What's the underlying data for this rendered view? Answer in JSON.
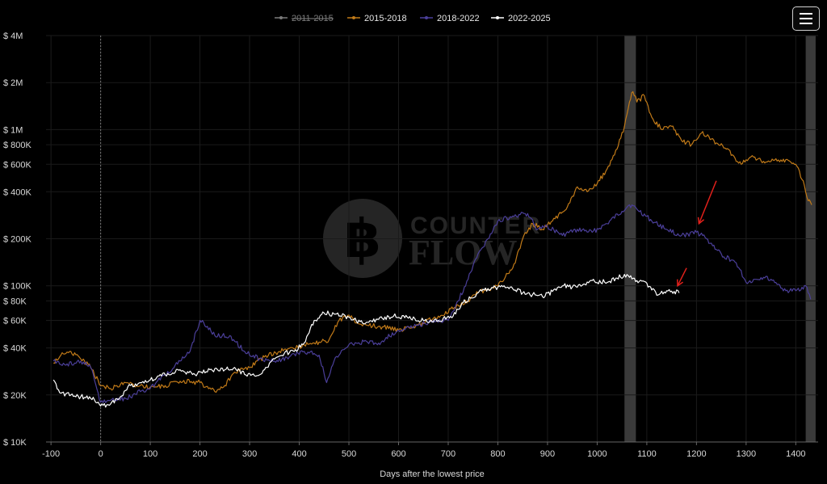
{
  "menu": {
    "icon": "hamburger-menu-icon"
  },
  "watermark": {
    "line1": "COUNTER",
    "line2": "FLOW",
    "logo_icon": "bitcoin-logo-icon"
  },
  "colors": {
    "background": "#000000",
    "grid": "#1b1b1b",
    "axis_text": "#d9d9d9",
    "axis_line": "#666666",
    "halving_band": "#3a3a3a",
    "annotation_arrow": "#e0201b"
  },
  "chart_data": {
    "type": "line",
    "title": "",
    "xlabel": "Days after the lowest price",
    "ylabel": "",
    "y_scale": "log",
    "xlim": [
      -110,
      1445
    ],
    "ylim": [
      10000,
      4000000
    ],
    "x_ticks": [
      -100,
      0,
      100,
      200,
      300,
      400,
      500,
      600,
      700,
      800,
      900,
      1000,
      1100,
      1200,
      1300,
      1400
    ],
    "x_tick_labels": [
      "-100",
      "0",
      "100",
      "200",
      "300",
      "400",
      "500",
      "600",
      "700",
      "800",
      "900",
      "1000",
      "1100",
      "1200",
      "1300",
      "1400"
    ],
    "y_ticks": [
      10000,
      20000,
      40000,
      60000,
      80000,
      100000,
      200000,
      400000,
      600000,
      800000,
      1000000,
      2000000,
      4000000
    ],
    "y_tick_labels": [
      "$ 10K",
      "$ 20K",
      "$ 40K",
      "$ 60K",
      "$ 80K",
      "$ 100K",
      "$ 200K",
      "$ 400K",
      "$ 600K",
      "$ 800K",
      "$ 1M",
      "$ 2M",
      "$ 4M"
    ],
    "grid": true,
    "legend_position": "top-center",
    "reference_line_x": 0,
    "shaded_bands": [
      {
        "x_start": 1055,
        "x_end": 1078
      },
      {
        "x_start": 1420,
        "x_end": 1440
      }
    ],
    "annotations": [
      {
        "type": "arrow",
        "from": [
          1240,
          470000
        ],
        "to": [
          1205,
          250000
        ]
      },
      {
        "type": "arrow",
        "from": [
          1180,
          130000
        ],
        "to": [
          1162,
          100000
        ]
      }
    ],
    "series": [
      {
        "name": "2011-2015",
        "color": "#7a7a7a",
        "hidden": true,
        "points": []
      },
      {
        "name": "2015-2018",
        "color": "#c17a18",
        "hidden": false,
        "points": [
          [
            -95,
            32000
          ],
          [
            -80,
            36000
          ],
          [
            -60,
            38000
          ],
          [
            -40,
            34000
          ],
          [
            -20,
            30000
          ],
          [
            0,
            23000
          ],
          [
            20,
            22000
          ],
          [
            50,
            24000
          ],
          [
            80,
            23000
          ],
          [
            100,
            22500
          ],
          [
            130,
            23000
          ],
          [
            160,
            24500
          ],
          [
            200,
            24000
          ],
          [
            230,
            21000
          ],
          [
            250,
            23000
          ],
          [
            270,
            28000
          ],
          [
            300,
            30000
          ],
          [
            330,
            35000
          ],
          [
            360,
            38000
          ],
          [
            400,
            41000
          ],
          [
            430,
            43000
          ],
          [
            460,
            45000
          ],
          [
            480,
            60000
          ],
          [
            500,
            65000
          ],
          [
            520,
            57000
          ],
          [
            560,
            55000
          ],
          [
            600,
            52000
          ],
          [
            640,
            56000
          ],
          [
            680,
            64000
          ],
          [
            720,
            75000
          ],
          [
            740,
            80000
          ],
          [
            760,
            90000
          ],
          [
            780,
            95000
          ],
          [
            800,
            100000
          ],
          [
            830,
            130000
          ],
          [
            850,
            200000
          ],
          [
            870,
            250000
          ],
          [
            890,
            230000
          ],
          [
            910,
            260000
          ],
          [
            940,
            320000
          ],
          [
            960,
            430000
          ],
          [
            980,
            400000
          ],
          [
            1000,
            450000
          ],
          [
            1020,
            560000
          ],
          [
            1040,
            750000
          ],
          [
            1055,
            1050000
          ],
          [
            1065,
            1500000
          ],
          [
            1072,
            1750000
          ],
          [
            1080,
            1500000
          ],
          [
            1095,
            1650000
          ],
          [
            1110,
            1200000
          ],
          [
            1130,
            1000000
          ],
          [
            1150,
            1050000
          ],
          [
            1170,
            850000
          ],
          [
            1190,
            800000
          ],
          [
            1210,
            950000
          ],
          [
            1230,
            870000
          ],
          [
            1260,
            750000
          ],
          [
            1290,
            600000
          ],
          [
            1310,
            670000
          ],
          [
            1340,
            620000
          ],
          [
            1370,
            640000
          ],
          [
            1400,
            600000
          ],
          [
            1415,
            470000
          ],
          [
            1425,
            350000
          ],
          [
            1432,
            330000
          ]
        ]
      },
      {
        "name": "2018-2022",
        "color": "#4b3f9a",
        "hidden": false,
        "points": [
          [
            -95,
            33000
          ],
          [
            -70,
            31000
          ],
          [
            -40,
            33000
          ],
          [
            -20,
            30000
          ],
          [
            0,
            18000
          ],
          [
            20,
            18500
          ],
          [
            50,
            19000
          ],
          [
            80,
            21000
          ],
          [
            100,
            22000
          ],
          [
            130,
            27000
          ],
          [
            160,
            33000
          ],
          [
            180,
            38000
          ],
          [
            200,
            60000
          ],
          [
            215,
            55000
          ],
          [
            230,
            48000
          ],
          [
            260,
            48000
          ],
          [
            290,
            38000
          ],
          [
            320,
            34000
          ],
          [
            350,
            33000
          ],
          [
            380,
            35000
          ],
          [
            410,
            38000
          ],
          [
            440,
            36000
          ],
          [
            455,
            24000
          ],
          [
            470,
            33000
          ],
          [
            500,
            42000
          ],
          [
            530,
            44000
          ],
          [
            560,
            43000
          ],
          [
            600,
            52000
          ],
          [
            640,
            56000
          ],
          [
            670,
            60000
          ],
          [
            700,
            60000
          ],
          [
            720,
            80000
          ],
          [
            740,
            110000
          ],
          [
            760,
            160000
          ],
          [
            780,
            200000
          ],
          [
            800,
            260000
          ],
          [
            830,
            280000
          ],
          [
            860,
            290000
          ],
          [
            880,
            230000
          ],
          [
            900,
            240000
          ],
          [
            930,
            210000
          ],
          [
            960,
            230000
          ],
          [
            990,
            220000
          ],
          [
            1020,
            250000
          ],
          [
            1050,
            300000
          ],
          [
            1065,
            330000
          ],
          [
            1080,
            310000
          ],
          [
            1110,
            260000
          ],
          [
            1140,
            230000
          ],
          [
            1170,
            210000
          ],
          [
            1200,
            220000
          ],
          [
            1220,
            200000
          ],
          [
            1250,
            160000
          ],
          [
            1280,
            140000
          ],
          [
            1300,
            105000
          ],
          [
            1320,
            110000
          ],
          [
            1340,
            115000
          ],
          [
            1360,
            105000
          ],
          [
            1380,
            93000
          ],
          [
            1400,
            93000
          ],
          [
            1420,
            100000
          ],
          [
            1430,
            82000
          ]
        ]
      },
      {
        "name": "2022-2025",
        "color": "#ffffff",
        "hidden": false,
        "points": [
          [
            -95,
            25000
          ],
          [
            -80,
            20500
          ],
          [
            -60,
            20000
          ],
          [
            -40,
            19500
          ],
          [
            -20,
            19000
          ],
          [
            -5,
            18000
          ],
          [
            0,
            17000
          ],
          [
            20,
            17500
          ],
          [
            40,
            19500
          ],
          [
            60,
            23000
          ],
          [
            80,
            24000
          ],
          [
            100,
            25000
          ],
          [
            130,
            27000
          ],
          [
            160,
            29000
          ],
          [
            190,
            27000
          ],
          [
            220,
            29000
          ],
          [
            250,
            29000
          ],
          [
            270,
            30000
          ],
          [
            290,
            27000
          ],
          [
            310,
            26500
          ],
          [
            330,
            29000
          ],
          [
            350,
            34000
          ],
          [
            370,
            37000
          ],
          [
            390,
            38000
          ],
          [
            410,
            43000
          ],
          [
            430,
            60000
          ],
          [
            450,
            67000
          ],
          [
            470,
            66000
          ],
          [
            500,
            63000
          ],
          [
            530,
            57000
          ],
          [
            560,
            61000
          ],
          [
            590,
            64000
          ],
          [
            620,
            62000
          ],
          [
            650,
            60000
          ],
          [
            680,
            60000
          ],
          [
            710,
            64000
          ],
          [
            730,
            78000
          ],
          [
            760,
            90000
          ],
          [
            790,
            97000
          ],
          [
            820,
            98000
          ],
          [
            850,
            90000
          ],
          [
            870,
            88000
          ],
          [
            890,
            85000
          ],
          [
            910,
            92000
          ],
          [
            930,
            100000
          ],
          [
            960,
            98000
          ],
          [
            990,
            108000
          ],
          [
            1020,
            105000
          ],
          [
            1040,
            112000
          ],
          [
            1060,
            118000
          ],
          [
            1080,
            108000
          ],
          [
            1100,
            104000
          ],
          [
            1110,
            94000
          ],
          [
            1125,
            88000
          ],
          [
            1140,
            93000
          ],
          [
            1155,
            92000
          ],
          [
            1165,
            90000
          ]
        ]
      }
    ]
  }
}
